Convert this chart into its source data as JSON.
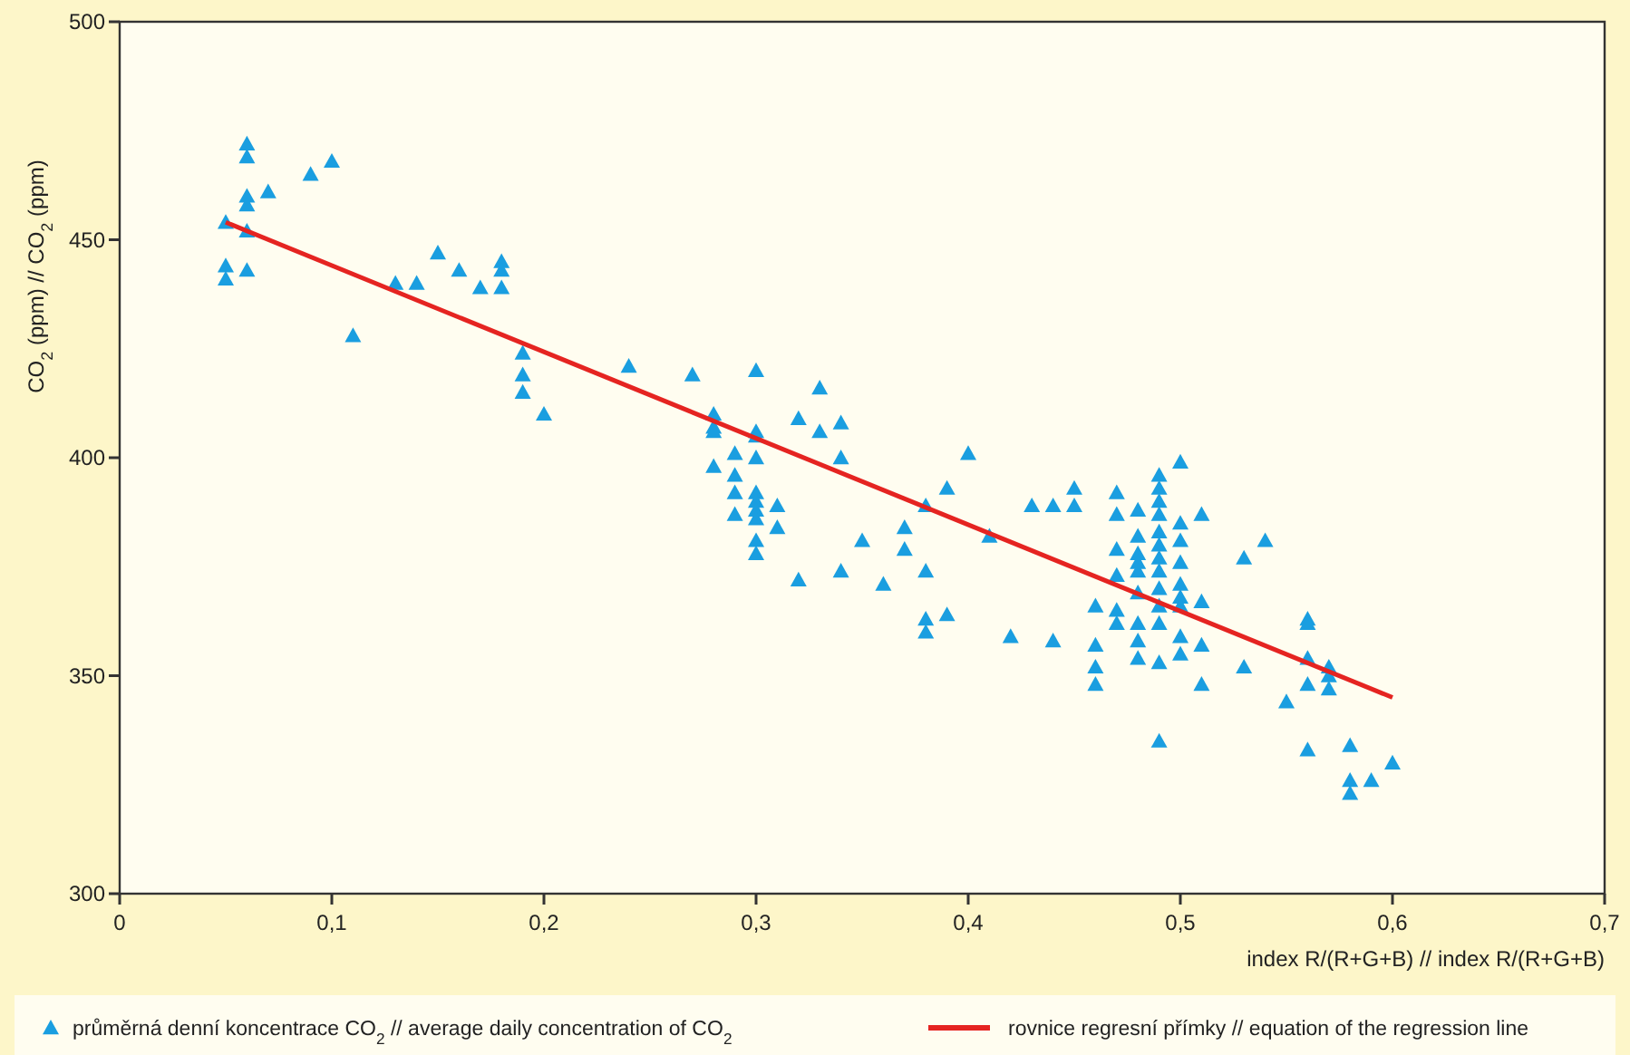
{
  "chart_data": {
    "type": "scatter",
    "xlabel": "index R/(R+G+B) // index R/(R+G+B)",
    "ylabel": "CO$_{2}$ (ppm) // CO$_{2}$ (ppm)",
    "xlim": [
      0,
      0.7
    ],
    "ylim": [
      300,
      500
    ],
    "xticks": [
      0,
      {
        "value": 0.1,
        "label": "0,1"
      },
      {
        "value": 0.2,
        "label": "0,2"
      },
      {
        "value": 0.3,
        "label": "0,3"
      },
      {
        "value": 0.4,
        "label": "0,4"
      },
      {
        "value": 0.5,
        "label": "0,5"
      },
      {
        "value": 0.6,
        "label": "0,6"
      },
      {
        "value": 0.7,
        "label": "0,7"
      }
    ],
    "yticks": [
      300,
      350,
      400,
      450,
      500
    ],
    "grid": false,
    "legend": "bottom",
    "series": [
      {
        "name": "průměrná denní koncentrace CO$_{2}$ // average daily concentration of CO$_{2}$",
        "color": "#1a9ee0",
        "marker": "triangle",
        "x": [
          0.05,
          0.05,
          0.05,
          0.06,
          0.06,
          0.06,
          0.06,
          0.06,
          0.06,
          0.07,
          0.09,
          0.1,
          0.11,
          0.13,
          0.14,
          0.15,
          0.16,
          0.17,
          0.18,
          0.18,
          0.18,
          0.19,
          0.19,
          0.19,
          0.2,
          0.24,
          0.27,
          0.28,
          0.28,
          0.28,
          0.28,
          0.29,
          0.29,
          0.29,
          0.29,
          0.3,
          0.3,
          0.3,
          0.3,
          0.3,
          0.3,
          0.3,
          0.3,
          0.3,
          0.3,
          0.31,
          0.31,
          0.32,
          0.32,
          0.33,
          0.33,
          0.34,
          0.34,
          0.34,
          0.35,
          0.36,
          0.37,
          0.37,
          0.38,
          0.38,
          0.38,
          0.38,
          0.39,
          0.39,
          0.4,
          0.41,
          0.42,
          0.43,
          0.44,
          0.44,
          0.45,
          0.45,
          0.46,
          0.46,
          0.46,
          0.46,
          0.47,
          0.47,
          0.47,
          0.47,
          0.47,
          0.47,
          0.48,
          0.48,
          0.48,
          0.48,
          0.48,
          0.48,
          0.48,
          0.48,
          0.48,
          0.49,
          0.49,
          0.49,
          0.49,
          0.49,
          0.49,
          0.49,
          0.49,
          0.49,
          0.49,
          0.49,
          0.49,
          0.49,
          0.5,
          0.5,
          0.5,
          0.5,
          0.5,
          0.5,
          0.5,
          0.5,
          0.5,
          0.51,
          0.51,
          0.51,
          0.51,
          0.53,
          0.53,
          0.54,
          0.55,
          0.56,
          0.56,
          0.56,
          0.56,
          0.56,
          0.57,
          0.57,
          0.57,
          0.58,
          0.58,
          0.58,
          0.59,
          0.6
        ],
        "values": [
          454,
          444,
          441,
          472,
          469,
          460,
          458,
          452,
          443,
          461,
          465,
          468,
          428,
          440,
          440,
          447,
          443,
          439,
          445,
          443,
          439,
          424,
          419,
          415,
          410,
          421,
          419,
          410,
          407,
          406,
          398,
          401,
          396,
          392,
          387,
          420,
          406,
          405,
          400,
          392,
          390,
          388,
          386,
          381,
          378,
          389,
          384,
          409,
          372,
          416,
          406,
          408,
          400,
          374,
          381,
          371,
          384,
          379,
          389,
          374,
          363,
          360,
          393,
          364,
          401,
          382,
          359,
          389,
          358,
          389,
          393,
          389,
          366,
          357,
          352,
          348,
          392,
          387,
          379,
          373,
          365,
          362,
          388,
          382,
          378,
          376,
          374,
          369,
          362,
          358,
          354,
          396,
          393,
          390,
          387,
          383,
          380,
          377,
          374,
          370,
          366,
          362,
          353,
          335,
          399,
          385,
          381,
          376,
          371,
          368,
          366,
          359,
          355,
          387,
          367,
          357,
          348,
          377,
          352,
          381,
          344,
          363,
          362,
          354,
          348,
          333,
          352,
          350,
          347,
          334,
          326,
          323,
          326,
          330
        ]
      },
      {
        "name": "rovnice regresní přímky // equation of the regression line",
        "type": "line",
        "color": "#e52421",
        "marker": "none",
        "line_style": "solid",
        "x": [
          0.05,
          0.6
        ],
        "values": [
          454,
          345
        ]
      }
    ]
  }
}
